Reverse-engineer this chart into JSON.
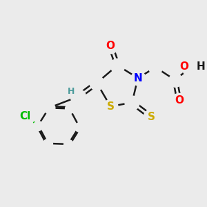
{
  "background_color": "#ebebeb",
  "bond_color": "#1a1a1a",
  "bond_width": 1.8,
  "atom_colors": {
    "O": "#ff0000",
    "N": "#0000ff",
    "S": "#ccaa00",
    "Cl": "#00bb00",
    "H_label": "#4a9a9a",
    "C": "#1a1a1a"
  },
  "font_size_atom": 11,
  "font_size_small": 9,
  "figsize": [
    3.0,
    3.0
  ],
  "dpi": 100,
  "xlim": [
    0,
    10
  ],
  "ylim": [
    0,
    10
  ]
}
